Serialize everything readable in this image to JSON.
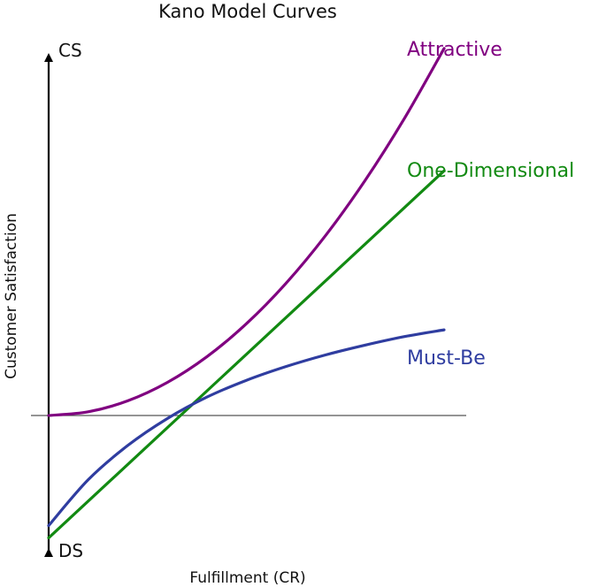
{
  "chart_data": {
    "type": "line",
    "title": "Kano Model Curves",
    "xlabel": "Fulfillment (CR)",
    "ylabel": "Customer Satisfaction",
    "y_top_label": "CS",
    "y_bottom_label": "DS",
    "grid": false,
    "legend": "inline labels at curve ends",
    "series": [
      {
        "name": "Attractive",
        "color": "#800080",
        "x": [
          0,
          1,
          2,
          3,
          4,
          5,
          6,
          7,
          8,
          9,
          10
        ],
        "y": [
          0,
          0.12,
          0.48,
          1.08,
          1.92,
          3.0,
          4.32,
          5.88,
          7.68,
          9.72,
          12.0
        ]
      },
      {
        "name": "One-Dimensional",
        "color": "#128A12",
        "x": [
          0,
          10
        ],
        "y": [
          -4.0,
          8.0
        ]
      },
      {
        "name": "Must-Be",
        "color": "#2F3DA0",
        "x": [
          0,
          1,
          2,
          3,
          4,
          5,
          6,
          7,
          8,
          9,
          10
        ],
        "y": [
          -3.6,
          -2.1,
          -0.98,
          -0.1,
          0.6,
          1.15,
          1.6,
          1.98,
          2.3,
          2.58,
          2.8
        ]
      }
    ]
  }
}
